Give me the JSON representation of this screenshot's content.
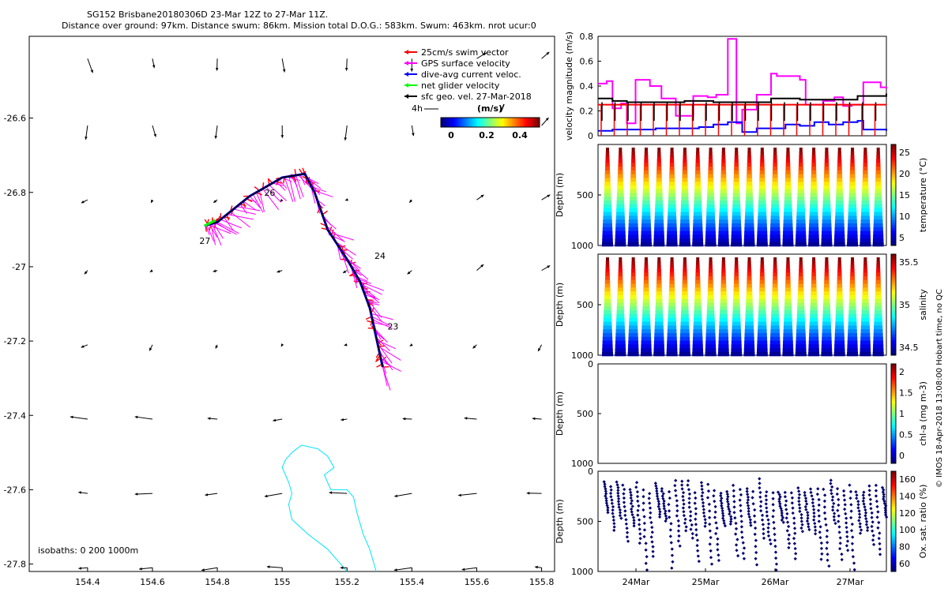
{
  "title": {
    "line1": "SG152 Brisbane20180306D 23-Mar 12Z to 27-Mar 11Z.",
    "line2": "Distance over ground: 97km. Distance swum: 86km. Mission total D.O.G.: 583km. Swum: 463km. nrot ucur:0"
  },
  "legend": {
    "items": [
      {
        "label": "25cm/s swim vector",
        "color": "#ff0000"
      },
      {
        "label": "GPS surface velocity",
        "color": "#ff00ff"
      },
      {
        "label": "dive-avg current veloc.",
        "color": "#0000ff"
      },
      {
        "label": "net glider velocity",
        "color": "#00ff00"
      },
      {
        "label": "sfc geo. vel. 27-Mar-2018",
        "color": "#000000"
      }
    ],
    "scale_label": "4h",
    "colorbar_unit": "(m/s)",
    "colorbar_ticks": [
      "0",
      "0.2",
      "0.4"
    ]
  },
  "isobaths_label": "isobaths: 0   200  1000m",
  "side_note": "© IMOS 18-Apr-2018 13:08:00 Hobart time, no QC",
  "chart_data": [
    {
      "type": "scatter",
      "name": "map",
      "xlim": [
        154.22,
        155.84
      ],
      "ylim": [
        -27.82,
        -26.38
      ],
      "x_ticks": [
        "154.4",
        "154.6",
        "154.8",
        "155",
        "155.2",
        "155.4",
        "155.6",
        "155.8"
      ],
      "y_ticks": [
        "-26.6",
        "-26.8",
        "-27",
        "-27.2",
        "-27.4",
        "-27.6",
        "-27.8"
      ],
      "track": [
        [
          155.31,
          -27.27
        ],
        [
          155.29,
          -27.19
        ],
        [
          155.27,
          -27.11
        ],
        [
          155.24,
          -27.04
        ],
        [
          155.2,
          -26.98
        ],
        [
          155.14,
          -26.9
        ],
        [
          155.1,
          -26.8
        ],
        [
          155.07,
          -26.75
        ],
        [
          155.0,
          -26.76
        ],
        [
          154.9,
          -26.81
        ],
        [
          154.8,
          -26.88
        ],
        [
          154.76,
          -26.89
        ]
      ],
      "day_labels": [
        {
          "text": "23",
          "lon": 155.31,
          "lat": -27.16
        },
        {
          "text": "24",
          "lon": 155.27,
          "lat": -26.97
        },
        {
          "text": "26",
          "lon": 154.93,
          "lat": -26.8
        },
        {
          "text": "27",
          "lon": 154.73,
          "lat": -26.93
        }
      ],
      "isobath_200m": [
        [
          155.03,
          -27.5
        ],
        [
          155.06,
          -27.48
        ],
        [
          155.11,
          -27.49
        ],
        [
          155.14,
          -27.51
        ],
        [
          155.16,
          -27.54
        ],
        [
          155.13,
          -27.56
        ],
        [
          155.15,
          -27.6
        ],
        [
          155.2,
          -27.6
        ],
        [
          155.22,
          -27.62
        ],
        [
          155.23,
          -27.66
        ],
        [
          155.25,
          -27.72
        ],
        [
          155.27,
          -27.76
        ],
        [
          155.29,
          -27.82
        ]
      ],
      "isobath_200m_west": [
        [
          155.03,
          -27.5
        ],
        [
          155.01,
          -27.52
        ],
        [
          155.0,
          -27.54
        ],
        [
          155.02,
          -27.58
        ],
        [
          155.03,
          -27.61
        ],
        [
          155.02,
          -27.64
        ],
        [
          155.03,
          -27.68
        ],
        [
          155.08,
          -27.72
        ],
        [
          155.14,
          -27.76
        ],
        [
          155.18,
          -27.8
        ],
        [
          155.2,
          -27.82
        ]
      ]
    },
    {
      "type": "line",
      "name": "velocity",
      "ylabel": "velocity magnitude (m/s)",
      "ylim": [
        0,
        0.8
      ],
      "y_ticks": [
        "0",
        "0.2",
        "0.4",
        "0.6",
        "0.8"
      ],
      "series": [
        {
          "color": "#ff00ff",
          "points": [
            [
              0,
              0.42
            ],
            [
              0.03,
              0.44
            ],
            [
              0.05,
              0.22
            ],
            [
              0.08,
              0.26
            ],
            [
              0.1,
              0.1
            ],
            [
              0.13,
              0.45
            ],
            [
              0.18,
              0.4
            ],
            [
              0.22,
              0.3
            ],
            [
              0.27,
              0.16
            ],
            [
              0.33,
              0.32
            ],
            [
              0.38,
              0.31
            ],
            [
              0.41,
              0.33
            ],
            [
              0.45,
              0.78
            ],
            [
              0.48,
              0.1
            ],
            [
              0.5,
              0.21
            ],
            [
              0.55,
              0.33
            ],
            [
              0.6,
              0.5
            ],
            [
              0.62,
              0.48
            ],
            [
              0.7,
              0.45
            ],
            [
              0.72,
              0.25
            ],
            [
              0.78,
              0.28
            ],
            [
              0.82,
              0.31
            ],
            [
              0.85,
              0.24
            ],
            [
              0.88,
              0.25
            ],
            [
              0.92,
              0.43
            ],
            [
              0.98,
              0.39
            ],
            [
              1,
              0.38
            ]
          ]
        },
        {
          "color": "#000000",
          "points": [
            [
              0,
              0.3
            ],
            [
              0.05,
              0.28
            ],
            [
              0.1,
              0.27
            ],
            [
              0.2,
              0.27
            ],
            [
              0.3,
              0.28
            ],
            [
              0.4,
              0.27
            ],
            [
              0.5,
              0.27
            ],
            [
              0.6,
              0.3
            ],
            [
              0.7,
              0.29
            ],
            [
              0.8,
              0.29
            ],
            [
              0.9,
              0.32
            ],
            [
              1,
              0.34
            ]
          ]
        },
        {
          "color": "#ff0000",
          "points": [
            [
              0,
              0.25
            ],
            [
              1,
              0.25
            ]
          ]
        },
        {
          "color": "#0000ff",
          "points": [
            [
              0,
              0.04
            ],
            [
              0.05,
              0.05
            ],
            [
              0.15,
              0.05
            ],
            [
              0.2,
              0.06
            ],
            [
              0.35,
              0.07
            ],
            [
              0.4,
              0.09
            ],
            [
              0.45,
              0.11
            ],
            [
              0.5,
              0.03
            ],
            [
              0.55,
              0.06
            ],
            [
              0.6,
              0.06
            ],
            [
              0.65,
              0.09
            ],
            [
              0.7,
              0.08
            ],
            [
              0.75,
              0.11
            ],
            [
              0.8,
              0.09
            ],
            [
              0.85,
              0.11
            ],
            [
              0.9,
              0.12
            ],
            [
              0.92,
              0.05
            ],
            [
              1,
              0.04
            ]
          ]
        }
      ]
    },
    {
      "type": "scatter",
      "name": "temperature",
      "ylabel": "Depth (m)",
      "ylim": [
        1000,
        0
      ],
      "y_ticks": [
        "500",
        "1000"
      ],
      "colorbar_label": "temperature (°C)",
      "colorbar_ticks": [
        "25",
        "20",
        "15",
        "10",
        "5"
      ],
      "colormap": "jet",
      "cycles": 22
    },
    {
      "type": "scatter",
      "name": "salinity",
      "ylabel": "Depth (m)",
      "ylim": [
        1000,
        0
      ],
      "y_ticks": [
        "500",
        "1000"
      ],
      "colorbar_label": "salinity",
      "colorbar_ticks": [
        "35.5",
        "35",
        "34.5"
      ],
      "colormap": "jet",
      "cycles": 22
    },
    {
      "type": "scatter",
      "name": "chla",
      "ylabel": "Depth (m)",
      "ylim": [
        1000,
        0
      ],
      "y_ticks": [
        "0",
        "500",
        "1000"
      ],
      "colorbar_label": "chl-a (mg m-3)",
      "colorbar_ticks": [
        "2",
        "1.5",
        "1",
        "0.5",
        "0"
      ],
      "colormap": "jet"
    },
    {
      "type": "scatter",
      "name": "oxygen",
      "ylabel": "Depth (m)",
      "ylim": [
        1000,
        0
      ],
      "y_ticks": [
        "0",
        "500",
        "1000"
      ],
      "colorbar_label": "Ox. sat. ratio (%)",
      "colorbar_ticks": [
        "160",
        "140",
        "120",
        "100",
        "80",
        "60"
      ],
      "colormap": "jet",
      "x_ticks": [
        "24Mar",
        "25Mar",
        "26Mar",
        "27Mar"
      ]
    }
  ]
}
